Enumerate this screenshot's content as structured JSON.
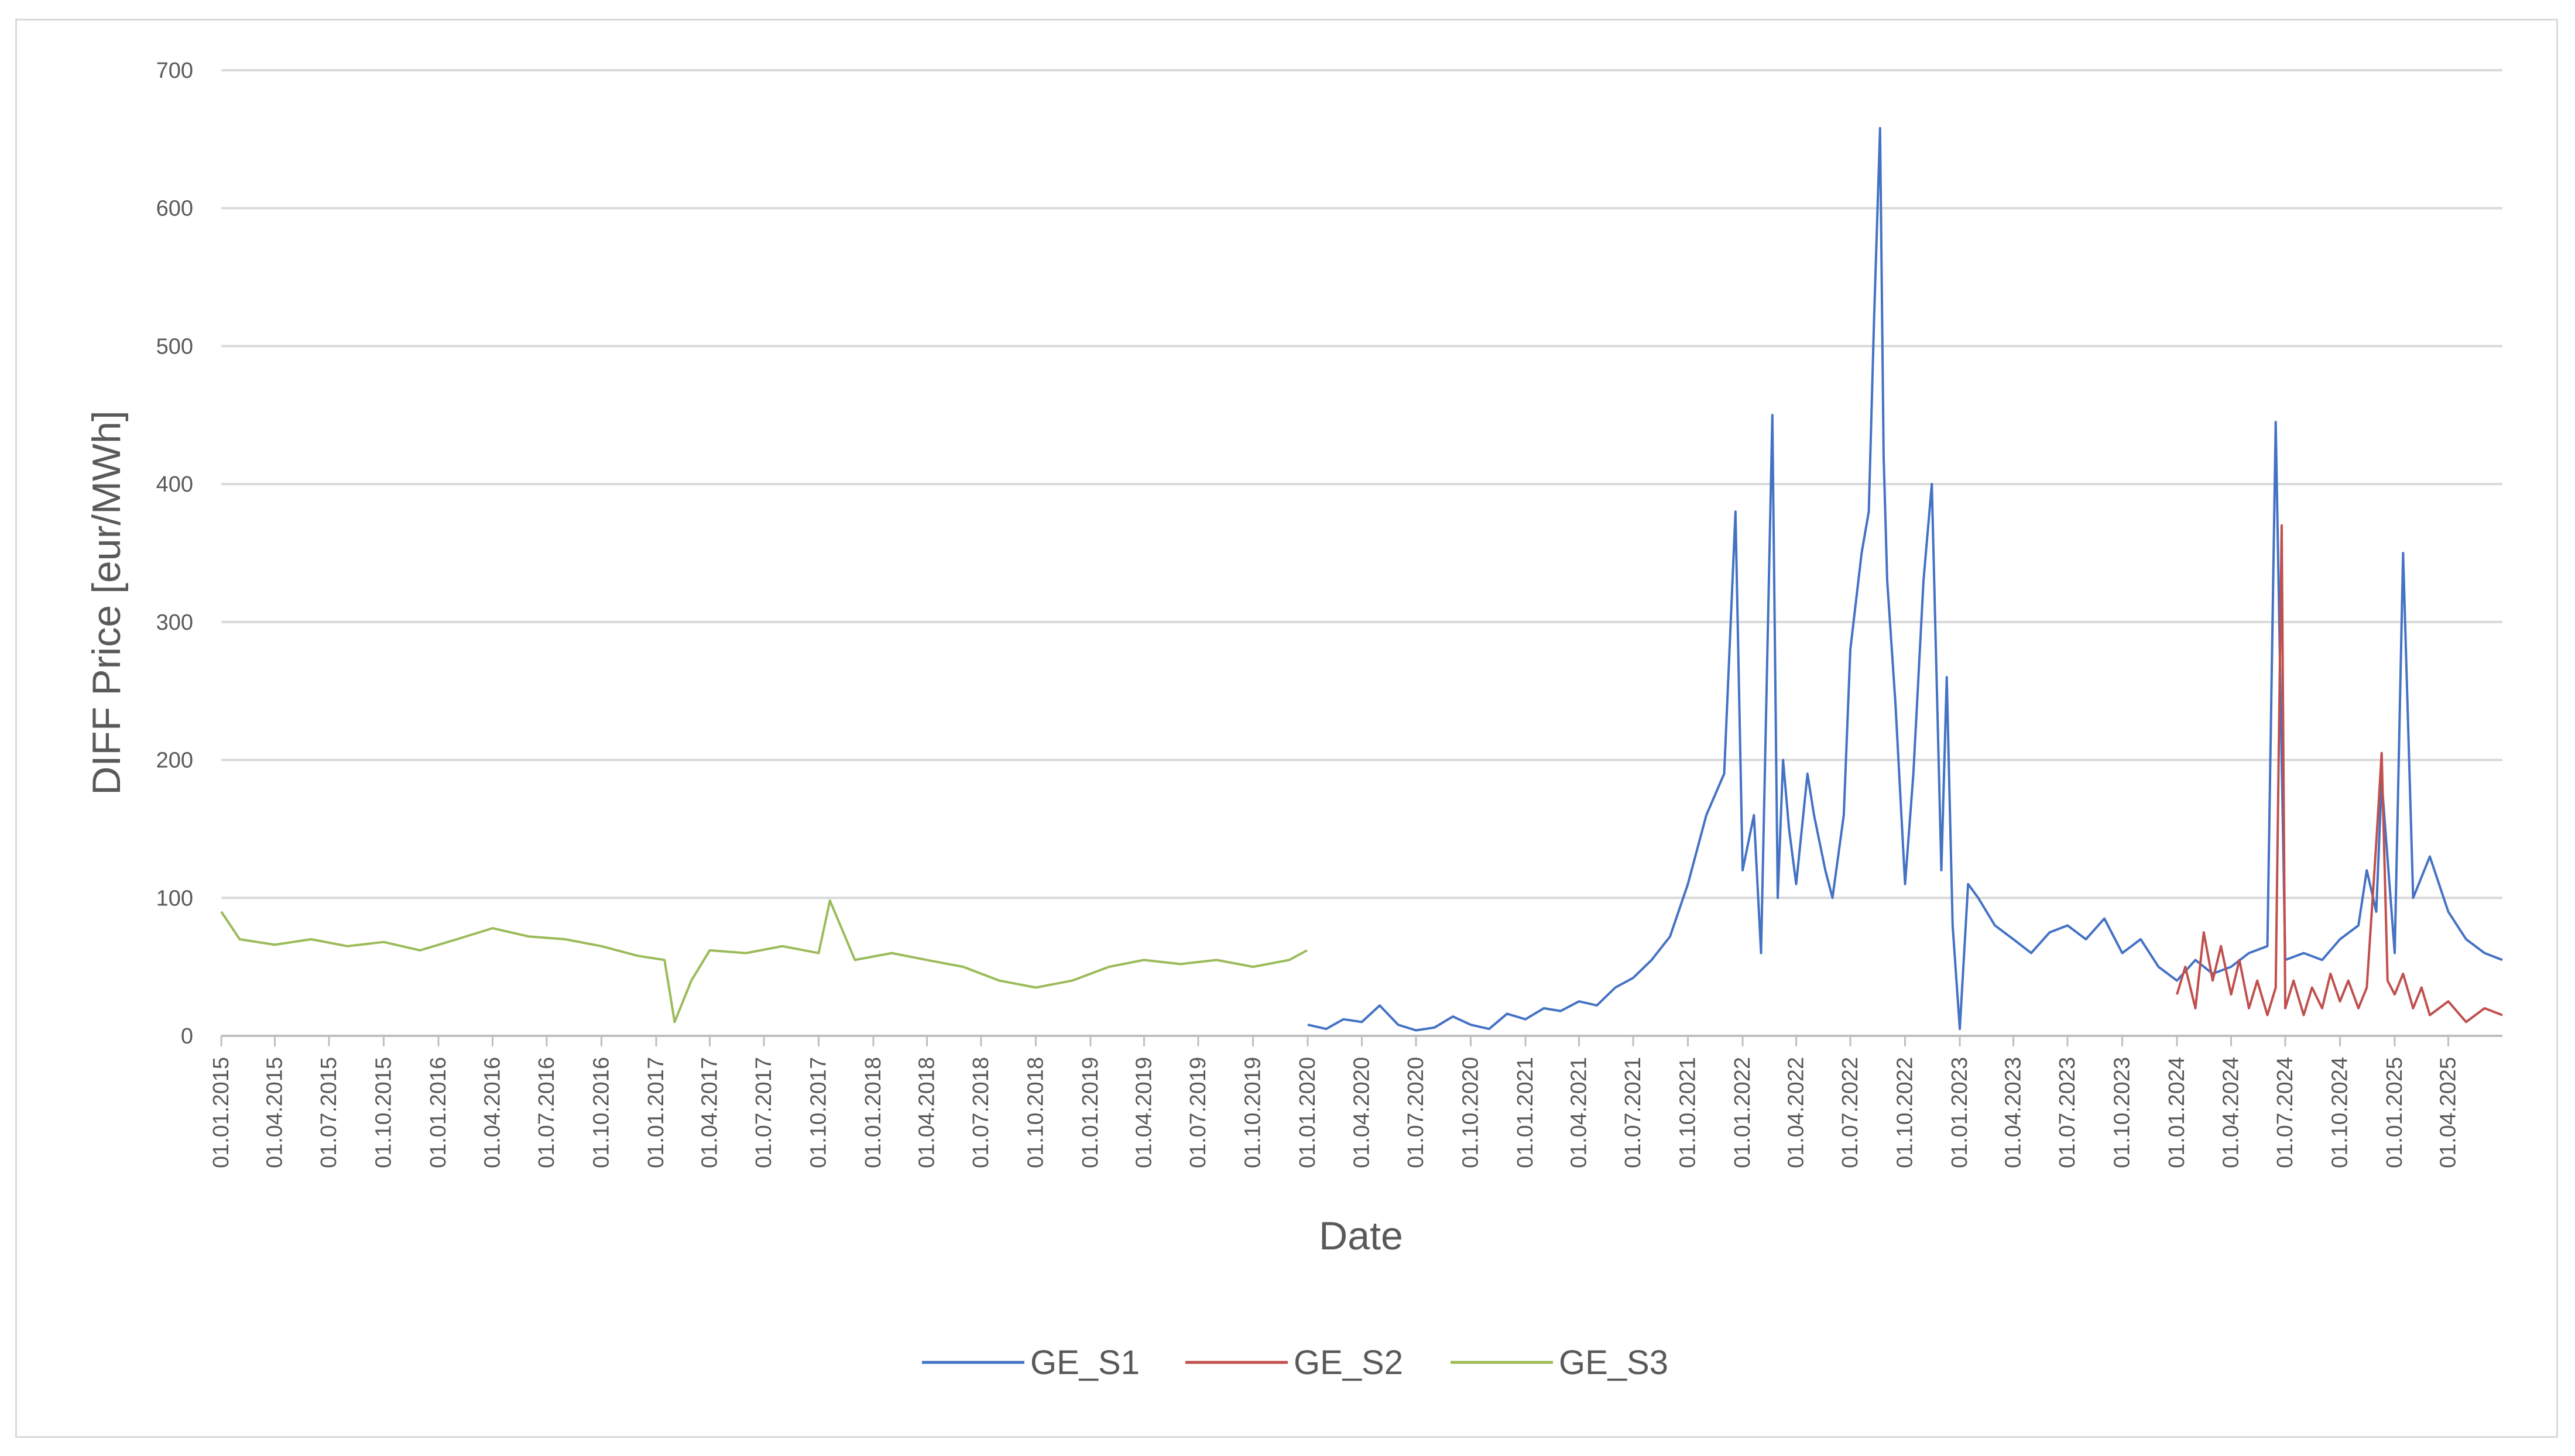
{
  "chart_data": {
    "type": "line",
    "title": "",
    "xlabel": "Date",
    "ylabel": "DIFF Price [eur/MWh]",
    "ylim": [
      0,
      700
    ],
    "yticks": [
      0,
      100,
      200,
      300,
      400,
      500,
      600,
      700
    ],
    "xlim": [
      "2015-01-01",
      "2025-07-01"
    ],
    "xtick_labels": [
      "01.01.2015",
      "01.04.2015",
      "01.07.2015",
      "01.10.2015",
      "01.01.2016",
      "01.04.2016",
      "01.07.2016",
      "01.10.2016",
      "01.01.2017",
      "01.04.2017",
      "01.07.2017",
      "01.10.2017",
      "01.01.2018",
      "01.04.2018",
      "01.07.2018",
      "01.10.2018",
      "01.01.2019",
      "01.04.2019",
      "01.07.2019",
      "01.10.2019",
      "01.01.2020",
      "01.04.2020",
      "01.07.2020",
      "01.10.2020",
      "01.01.2021",
      "01.04.2021",
      "01.07.2021",
      "01.10.2021",
      "01.01.2022",
      "01.04.2022",
      "01.07.2022",
      "01.10.2022",
      "01.01.2023",
      "01.04.2023",
      "01.07.2023",
      "01.10.2023",
      "01.01.2024",
      "01.04.2024",
      "01.07.2024",
      "01.10.2024",
      "01.01.2025",
      "01.04.2025"
    ],
    "grid": "horizontal",
    "legend": "bottom",
    "series": [
      {
        "name": "GE_S1",
        "color": "#4472c4",
        "x": [
          "2020-01-01",
          "2020-02-01",
          "2020-03-01",
          "2020-04-01",
          "2020-05-01",
          "2020-06-01",
          "2020-07-01",
          "2020-08-01",
          "2020-09-01",
          "2020-10-01",
          "2020-11-01",
          "2020-12-01",
          "2021-01-01",
          "2021-02-01",
          "2021-03-01",
          "2021-04-01",
          "2021-05-01",
          "2021-06-01",
          "2021-07-01",
          "2021-08-01",
          "2021-09-01",
          "2021-10-01",
          "2021-11-01",
          "2021-12-01",
          "2021-12-20",
          "2022-01-01",
          "2022-01-20",
          "2022-02-01",
          "2022-02-20",
          "2022-03-01",
          "2022-03-10",
          "2022-03-20",
          "2022-04-01",
          "2022-04-20",
          "2022-05-01",
          "2022-05-20",
          "2022-06-01",
          "2022-06-20",
          "2022-07-01",
          "2022-07-20",
          "2022-08-01",
          "2022-08-10",
          "2022-08-20",
          "2022-08-26",
          "2022-09-01",
          "2022-09-15",
          "2022-10-01",
          "2022-10-15",
          "2022-11-01",
          "2022-11-15",
          "2022-12-01",
          "2022-12-10",
          "2022-12-20",
          "2023-01-01",
          "2023-01-15",
          "2023-02-01",
          "2023-03-01",
          "2023-04-01",
          "2023-05-01",
          "2023-06-01",
          "2023-07-01",
          "2023-08-01",
          "2023-09-01",
          "2023-10-01",
          "2023-11-01",
          "2023-12-01",
          "2024-01-01",
          "2024-02-01",
          "2024-03-01",
          "2024-04-01",
          "2024-05-01",
          "2024-06-01",
          "2024-06-15",
          "2024-07-01",
          "2024-08-01",
          "2024-09-01",
          "2024-10-01",
          "2024-11-01",
          "2024-11-15",
          "2024-12-01",
          "2024-12-10",
          "2025-01-01",
          "2025-01-15",
          "2025-02-01",
          "2025-03-01",
          "2025-04-01",
          "2025-05-01",
          "2025-06-01",
          "2025-07-01"
        ],
        "values": [
          8,
          5,
          12,
          10,
          22,
          8,
          4,
          6,
          14,
          8,
          5,
          16,
          12,
          20,
          18,
          25,
          22,
          35,
          42,
          55,
          72,
          110,
          160,
          190,
          380,
          120,
          160,
          60,
          450,
          100,
          200,
          150,
          110,
          190,
          160,
          120,
          100,
          160,
          280,
          350,
          380,
          520,
          658,
          420,
          330,
          240,
          110,
          190,
          330,
          400,
          120,
          260,
          80,
          5,
          110,
          100,
          80,
          70,
          60,
          75,
          80,
          70,
          85,
          60,
          70,
          50,
          40,
          55,
          45,
          50,
          60,
          65,
          445,
          55,
          60,
          55,
          70,
          80,
          120,
          90,
          185,
          60,
          350,
          100,
          130,
          90,
          70,
          60,
          55
        ]
      },
      {
        "name": "GE_S2",
        "color": "#c0504d",
        "x": [
          "2024-01-01",
          "2024-01-15",
          "2024-02-01",
          "2024-02-15",
          "2024-03-01",
          "2024-03-15",
          "2024-04-01",
          "2024-04-15",
          "2024-05-01",
          "2024-05-15",
          "2024-06-01",
          "2024-06-15",
          "2024-06-25",
          "2024-07-01",
          "2024-07-15",
          "2024-08-01",
          "2024-08-15",
          "2024-09-01",
          "2024-09-15",
          "2024-10-01",
          "2024-10-15",
          "2024-11-01",
          "2024-11-15",
          "2024-12-01",
          "2024-12-10",
          "2024-12-20",
          "2025-01-01",
          "2025-01-15",
          "2025-02-01",
          "2025-02-15",
          "2025-03-01",
          "2025-04-01",
          "2025-05-01",
          "2025-06-01",
          "2025-07-01"
        ],
        "values": [
          30,
          50,
          20,
          75,
          40,
          65,
          30,
          55,
          20,
          40,
          15,
          35,
          370,
          20,
          40,
          15,
          35,
          20,
          45,
          25,
          40,
          20,
          35,
          140,
          205,
          40,
          30,
          45,
          20,
          35,
          15,
          25,
          10,
          20,
          15
        ]
      },
      {
        "name": "GE_S3",
        "color": "#9bbb59",
        "x": [
          "2015-01-01",
          "2015-02-01",
          "2015-04-01",
          "2015-06-01",
          "2015-08-01",
          "2015-10-01",
          "2015-12-01",
          "2016-02-01",
          "2016-04-01",
          "2016-06-01",
          "2016-08-01",
          "2016-10-01",
          "2016-12-01",
          "2017-01-15",
          "2017-02-01",
          "2017-03-01",
          "2017-04-01",
          "2017-06-01",
          "2017-08-01",
          "2017-10-01",
          "2017-10-20",
          "2017-12-01",
          "2018-02-01",
          "2018-04-01",
          "2018-06-01",
          "2018-08-01",
          "2018-10-01",
          "2018-12-01",
          "2019-02-01",
          "2019-04-01",
          "2019-06-01",
          "2019-08-01",
          "2019-10-01",
          "2019-12-01",
          "2019-12-31"
        ],
        "values": [
          90,
          70,
          66,
          70,
          65,
          68,
          62,
          70,
          78,
          72,
          70,
          65,
          58,
          55,
          10,
          40,
          62,
          60,
          65,
          60,
          98,
          55,
          60,
          55,
          50,
          40,
          35,
          40,
          50,
          55,
          52,
          55,
          50,
          55,
          62
        ]
      }
    ]
  }
}
